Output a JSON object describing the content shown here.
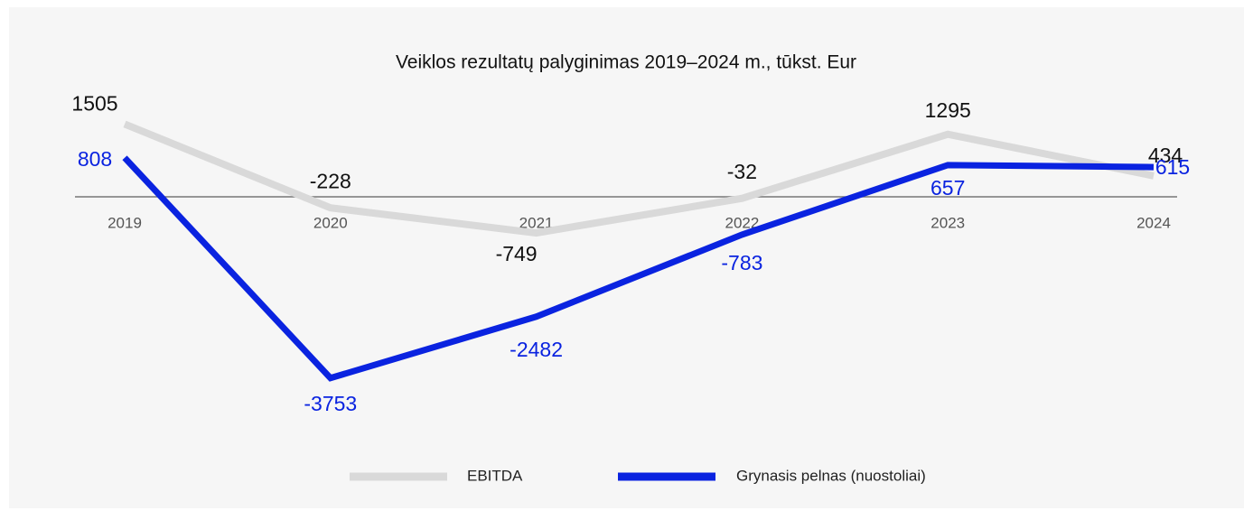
{
  "chart_data": {
    "type": "line",
    "title": "Veiklos rezultatų palyginimas 2019–2024 m., tūkst. Eur",
    "categories": [
      "2019",
      "2020",
      "2021",
      "2022",
      "2023",
      "2024"
    ],
    "series": [
      {
        "name": "EBITDA",
        "color": "#d9d9d9",
        "values": [
          1505,
          -228,
          -749,
          -32,
          1295,
          434
        ]
      },
      {
        "name": "Grynasis pelnas (nuostoliai)",
        "color": "#0a23e0",
        "values": [
          808,
          -3753,
          -2482,
          -783,
          657,
          615
        ]
      }
    ],
    "ylim": [
      -4000,
      1800
    ]
  }
}
